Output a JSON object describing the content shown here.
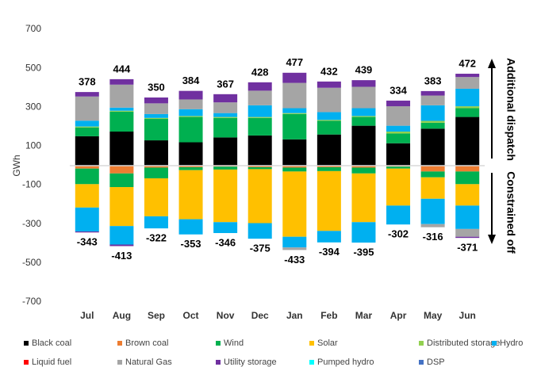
{
  "chart_data": {
    "type": "stacked_bar",
    "y_label": "GWh",
    "annotations": [
      "Additional dispatch",
      "Constrained off"
    ],
    "categories": [
      "Jul",
      "Aug",
      "Sep",
      "Oct",
      "Nov",
      "Dec",
      "Jan",
      "Feb",
      "Mar",
      "Apr",
      "May",
      "Jun"
    ],
    "ylim": [
      -700,
      700
    ],
    "yticks": [
      -700,
      -500,
      -300,
      -100,
      100,
      300,
      500,
      700
    ],
    "positive_totals": [
      378,
      444,
      350,
      384,
      367,
      428,
      477,
      432,
      439,
      334,
      383,
      472
    ],
    "negative_totals": [
      -343,
      -413,
      -322,
      -353,
      -346,
      -375,
      -433,
      -394,
      -395,
      -302,
      -316,
      -371
    ],
    "series": [
      {
        "name": "Black coal",
        "color": "#000000",
        "values": [
          151,
          175,
          130,
          120,
          145,
          155,
          135,
          160,
          205,
          115,
          190,
          250
        ],
        "negative_values": [
          0,
          0,
          0,
          0,
          0,
          0,
          0,
          0,
          0,
          0,
          0,
          0
        ]
      },
      {
        "name": "Brown coal",
        "color": "#ed7d31",
        "values": [
          0,
          0,
          0,
          0,
          0,
          0,
          0,
          0,
          0,
          0,
          0,
          0
        ],
        "negative_values": [
          -15,
          -40,
          -10,
          -8,
          -5,
          -8,
          -10,
          -8,
          -10,
          -5,
          -30,
          -30
        ]
      },
      {
        "name": "Wind",
        "color": "#00b050",
        "values": [
          45,
          102,
          110,
          130,
          100,
          90,
          130,
          70,
          45,
          50,
          30,
          45
        ],
        "negative_values": [
          -80,
          -70,
          -55,
          -15,
          -15,
          -10,
          -20,
          -20,
          -30,
          -10,
          -30,
          -65
        ]
      },
      {
        "name": "Solar",
        "color": "#ffc000",
        "values": [
          0,
          0,
          0,
          0,
          0,
          0,
          0,
          0,
          0,
          0,
          0,
          0
        ],
        "negative_values": [
          -120,
          -200,
          -195,
          -252,
          -270,
          -277,
          -335,
          -307,
          -250,
          -190,
          -110,
          -110
        ]
      },
      {
        "name": "Distributed storage",
        "color": "#92d050",
        "values": [
          5,
          5,
          5,
          5,
          5,
          5,
          5,
          5,
          5,
          10,
          10,
          10
        ],
        "negative_values": [
          0,
          0,
          0,
          0,
          0,
          0,
          0,
          0,
          0,
          0,
          0,
          0
        ]
      },
      {
        "name": "Hydro",
        "color": "#00b0f0",
        "values": [
          30,
          16,
          20,
          35,
          20,
          60,
          25,
          40,
          40,
          30,
          80,
          90
        ],
        "negative_values": [
          -123,
          -95,
          -62,
          -78,
          -56,
          -80,
          -55,
          -59,
          -105,
          -97,
          -130,
          -120
        ]
      },
      {
        "name": "Liquid fuel",
        "color": "#ff0000",
        "values": [
          0,
          0,
          0,
          0,
          0,
          0,
          0,
          0,
          0,
          0,
          0,
          0
        ],
        "negative_values": [
          0,
          0,
          0,
          0,
          0,
          0,
          0,
          0,
          0,
          0,
          0,
          0
        ]
      },
      {
        "name": "Natural Gas",
        "color": "#a5a5a5",
        "values": [
          124,
          118,
          55,
          50,
          55,
          75,
          130,
          125,
          110,
          100,
          50,
          60
        ],
        "negative_values": [
          0,
          0,
          0,
          0,
          0,
          0,
          -13,
          0,
          0,
          0,
          -16,
          -40
        ]
      },
      {
        "name": "Utility storage",
        "color": "#7030a0",
        "values": [
          23,
          28,
          30,
          44,
          42,
          43,
          52,
          32,
          34,
          29,
          23,
          17
        ],
        "negative_values": [
          -5,
          -8,
          0,
          0,
          0,
          0,
          0,
          0,
          0,
          0,
          0,
          -6
        ]
      },
      {
        "name": "Pumped hydro",
        "color": "#00ffff",
        "values": [
          0,
          0,
          0,
          0,
          0,
          0,
          0,
          0,
          0,
          0,
          0,
          0
        ],
        "negative_values": [
          0,
          0,
          0,
          0,
          0,
          0,
          0,
          0,
          0,
          0,
          0,
          0
        ]
      },
      {
        "name": "DSP",
        "color": "#4472c4",
        "values": [
          0,
          0,
          0,
          0,
          0,
          0,
          0,
          0,
          0,
          0,
          0,
          0
        ],
        "negative_values": [
          0,
          0,
          0,
          0,
          0,
          0,
          0,
          0,
          0,
          0,
          0,
          0
        ]
      }
    ]
  }
}
